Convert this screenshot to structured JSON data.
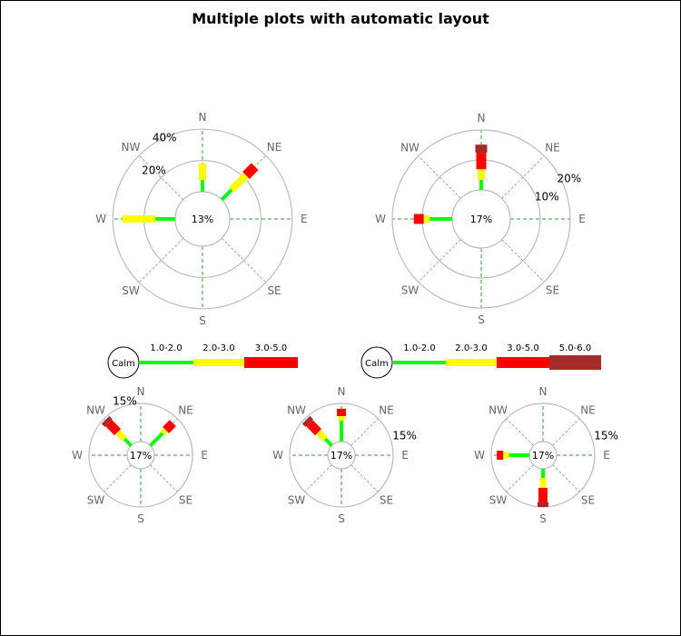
{
  "title": "Multiple plots with automatic layout",
  "colors": {
    "band1": "#00ff00",
    "band2": "#ffff00",
    "band3": "#ff0000",
    "band4": "#a52a2a",
    "grid": "#bbbbbb",
    "spoke": "#339933"
  },
  "chart_data": [
    {
      "type": "windrose",
      "directions": [
        "N",
        "NE",
        "E",
        "SE",
        "S",
        "SW",
        "W",
        "NW"
      ],
      "center_label": "13%",
      "ring_labels": [
        "20%",
        "40%"
      ],
      "rings": [
        20,
        40
      ],
      "series": {
        "N": [
          7.5,
          10.5
        ],
        "NE": [
          9,
          13,
          8
        ],
        "W": [
          12.8,
          21
        ]
      }
    },
    {
      "type": "windrose",
      "directions": [
        "N",
        "NE",
        "E",
        "SE",
        "S",
        "SW",
        "W",
        "NW"
      ],
      "center_label": "17%",
      "ring_labels": [
        "10%",
        "20%"
      ],
      "rings": [
        10,
        20
      ],
      "series": {
        "N": [
          3.3,
          3.6,
          5.5,
          2.7
        ],
        "W": [
          7.5,
          2,
          3.3
        ]
      }
    },
    {
      "type": "windrose",
      "directions": [
        "N",
        "NE",
        "E",
        "SE",
        "S",
        "SW",
        "W",
        "NW"
      ],
      "center_label": "17%",
      "ring_labels": [
        "15%"
      ],
      "rings": [
        15
      ],
      "series": {
        "NW": [
          3.6,
          3.9,
          5,
          1.8
        ],
        "NE": [
          6.8,
          1.8,
          3.9
        ]
      }
    },
    {
      "type": "windrose",
      "directions": [
        "N",
        "NE",
        "E",
        "SE",
        "S",
        "SW",
        "W",
        "NW"
      ],
      "center_label": "17%",
      "ring_labels": [
        "15%"
      ],
      "rings": [
        15
      ],
      "series": {
        "N": [
          8.2,
          1.8,
          2.9
        ],
        "NW": [
          3.6,
          3.9,
          5,
          1.8
        ]
      }
    },
    {
      "type": "windrose",
      "directions": [
        "N",
        "NE",
        "E",
        "SE",
        "S",
        "SW",
        "W",
        "NW"
      ],
      "center_label": "17%",
      "ring_labels": [
        "15%"
      ],
      "rings": [
        15
      ],
      "series": {
        "W": [
          8,
          2.3,
          2.5
        ],
        "S": [
          3.6,
          3.9,
          5.7,
          1.8
        ]
      }
    }
  ],
  "legends": [
    {
      "calm": "Calm",
      "ranges": [
        "1.0-2.0",
        "2.0-3.0",
        "3.0-5.0"
      ]
    },
    {
      "calm": "Calm",
      "ranges": [
        "1.0-2.0",
        "2.0-3.0",
        "3.0-5.0",
        "5.0-6.0"
      ]
    }
  ]
}
